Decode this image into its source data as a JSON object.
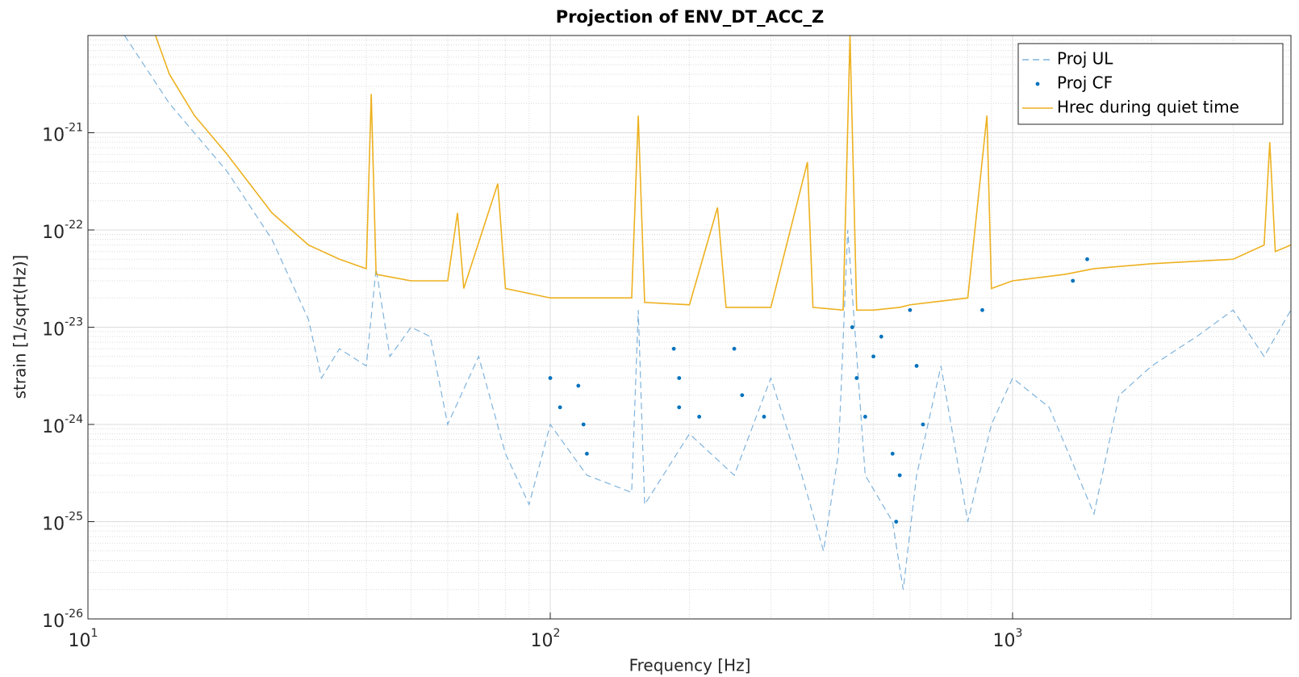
{
  "chart_data": {
    "type": "line",
    "title": "Projection of ENV_DT_ACC_Z",
    "x_label": "Frequency [Hz]",
    "y_label": "strain [1/sqrt(Hz)]",
    "log_x": true,
    "log_y": true,
    "grid": true,
    "legend": "top-right",
    "xlim": [
      10,
      4000
    ],
    "ylim": [
      1e-26,
      1e-20
    ],
    "xticks": [
      {
        "value": 10,
        "label": "10",
        "exponent": "1"
      },
      {
        "value": 100,
        "label": "10",
        "exponent": "2"
      },
      {
        "value": 1000,
        "label": "10",
        "exponent": "3"
      }
    ],
    "yticks": [
      {
        "value": 1e-26,
        "label": "10",
        "exponent": "-26"
      },
      {
        "value": 1e-25,
        "label": "10",
        "exponent": "-25"
      },
      {
        "value": 1e-24,
        "label": "10",
        "exponent": "-24"
      },
      {
        "value": 1e-23,
        "label": "10",
        "exponent": "-23"
      },
      {
        "value": 1e-22,
        "label": "10",
        "exponent": "-22"
      },
      {
        "value": 1e-21,
        "label": "10",
        "exponent": "-21"
      }
    ],
    "xminorticks": [
      20,
      30,
      40,
      50,
      60,
      70,
      80,
      90,
      200,
      300,
      400,
      500,
      600,
      700,
      800,
      900,
      2000,
      3000,
      4000
    ],
    "yminorticks": [
      2e-26,
      3e-26,
      4e-26,
      5e-26,
      6e-26,
      7e-26,
      8e-26,
      9e-26,
      2e-25,
      3e-25,
      4e-25,
      5e-25,
      6e-25,
      7e-25,
      8e-25,
      9e-25,
      2e-24,
      3e-24,
      4e-24,
      5e-24,
      6e-24,
      7e-24,
      8e-24,
      9e-24,
      2e-23,
      3e-23,
      4e-23,
      5e-23,
      6e-23,
      7e-23,
      8e-23,
      9e-23,
      2e-22,
      3e-22,
      4e-22,
      5e-22,
      6e-22,
      7e-22,
      8e-22,
      9e-22,
      2e-21,
      3e-21,
      4e-21,
      5e-21,
      6e-21,
      7e-21,
      8e-21,
      9e-21
    ],
    "series": [
      {
        "name": "Proj UL",
        "color": "#7fb3dc",
        "style": "dashed",
        "x": [
          12,
          15,
          20,
          25,
          30,
          32,
          35,
          40,
          42,
          45,
          50,
          55,
          60,
          70,
          80,
          90,
          100,
          120,
          150,
          155,
          160,
          200,
          250,
          300,
          350,
          390,
          420,
          440,
          480,
          550,
          580,
          620,
          700,
          800,
          900,
          1000,
          1200,
          1500,
          1700,
          2000,
          2500,
          3000,
          3500,
          4000
        ],
        "values": [
          1e-20,
          2e-21,
          4e-22,
          8e-23,
          1.2e-23,
          3e-24,
          6e-24,
          4e-24,
          4e-23,
          5e-24,
          1e-23,
          8e-24,
          1e-24,
          5e-24,
          5e-25,
          1.5e-25,
          1e-24,
          3e-25,
          2e-25,
          1.5e-23,
          1.5e-25,
          8e-25,
          3e-25,
          3e-24,
          3e-25,
          5e-26,
          5e-25,
          1e-22,
          3e-25,
          1e-25,
          2e-26,
          3e-25,
          4e-24,
          1e-25,
          1e-24,
          3e-24,
          1.5e-24,
          1.2e-25,
          2e-24,
          4e-24,
          8e-24,
          1.5e-23,
          5e-24,
          1.5e-23
        ]
      },
      {
        "name": "Proj CF",
        "color": "#0072bd",
        "style": "dots",
        "x": [
          100,
          105,
          115,
          118,
          120,
          185,
          190,
          190,
          210,
          250,
          260,
          290,
          450,
          460,
          480,
          500,
          520,
          550,
          560,
          570,
          600,
          620,
          640,
          860,
          1350,
          1450
        ],
        "values": [
          3e-24,
          1.5e-24,
          2.5e-24,
          1e-24,
          5e-25,
          6e-24,
          3e-24,
          1.5e-24,
          1.2e-24,
          6e-24,
          2e-24,
          1.2e-24,
          1e-23,
          3e-24,
          1.2e-24,
          5e-24,
          8e-24,
          5e-25,
          1e-25,
          3e-25,
          1.5e-23,
          4e-24,
          1e-24,
          1.5e-23,
          3e-23,
          5e-23
        ]
      },
      {
        "name": "Hrec during quiet time",
        "color": "#edb120",
        "style": "solid",
        "x": [
          14,
          15,
          17,
          20,
          25,
          30,
          35,
          40,
          41,
          42,
          50,
          60,
          63,
          65,
          77,
          80,
          100,
          150,
          155,
          160,
          200,
          230,
          240,
          300,
          360,
          370,
          430,
          445,
          460,
          500,
          570,
          600,
          800,
          880,
          900,
          1000,
          1300,
          1500,
          2000,
          3000,
          3500,
          3600,
          3700,
          4000
        ],
        "values": [
          1e-20,
          4e-21,
          1.5e-21,
          6e-22,
          1.5e-22,
          7e-23,
          5e-23,
          4e-23,
          2.5e-21,
          3.5e-23,
          3e-23,
          3e-23,
          1.5e-22,
          2.5e-23,
          3e-22,
          2.5e-23,
          2e-23,
          2e-23,
          1.5e-21,
          1.8e-23,
          1.7e-23,
          1.7e-22,
          1.6e-23,
          1.6e-23,
          5e-22,
          1.6e-23,
          1.5e-23,
          1e-20,
          1.5e-23,
          1.5e-23,
          1.6e-23,
          1.7e-23,
          2e-23,
          1.5e-21,
          2.5e-23,
          3e-23,
          3.5e-23,
          4e-23,
          4.5e-23,
          5e-23,
          7e-23,
          8e-22,
          6e-23,
          7e-23
        ]
      }
    ]
  }
}
